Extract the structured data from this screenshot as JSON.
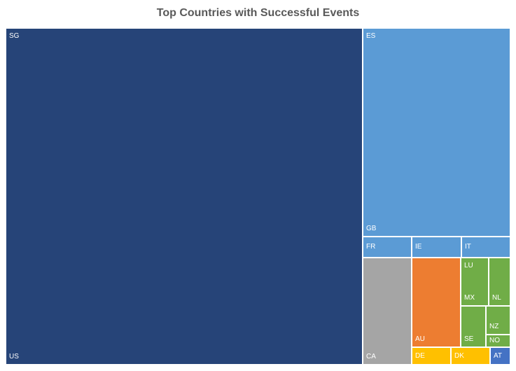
{
  "chart_data": {
    "type": "treemap",
    "title": "Top Countries with Successful Events",
    "colors": {
      "navy": "#264478",
      "lightblue": "#5B9BD5",
      "gray": "#A5A5A5",
      "orange": "#ED7D31",
      "green": "#70AD47",
      "gold": "#FFC000",
      "blue": "#4472C4"
    },
    "tiles": [
      {
        "id": "sg-us",
        "labels": [
          "SG",
          "US"
        ],
        "color": "navy"
      },
      {
        "id": "es-gb",
        "labels": [
          "ES",
          "GB"
        ],
        "color": "lightblue"
      },
      {
        "id": "fr",
        "labels": [
          "FR"
        ],
        "color": "lightblue"
      },
      {
        "id": "ie",
        "labels": [
          "IE"
        ],
        "color": "lightblue"
      },
      {
        "id": "it",
        "labels": [
          "IT"
        ],
        "color": "lightblue"
      },
      {
        "id": "ca",
        "labels": [
          "CA"
        ],
        "color": "gray"
      },
      {
        "id": "au",
        "labels": [
          "AU"
        ],
        "color": "orange"
      },
      {
        "id": "lu-mx",
        "labels": [
          "LU",
          "MX"
        ],
        "color": "green"
      },
      {
        "id": "nl",
        "labels": [
          "NL"
        ],
        "color": "green"
      },
      {
        "id": "se",
        "labels": [
          "SE"
        ],
        "color": "green"
      },
      {
        "id": "nz",
        "labels": [
          "NZ"
        ],
        "color": "green"
      },
      {
        "id": "no",
        "labels": [
          "NO"
        ],
        "color": "green"
      },
      {
        "id": "de",
        "labels": [
          "DE"
        ],
        "color": "gold"
      },
      {
        "id": "dk",
        "labels": [
          "DK"
        ],
        "color": "gold"
      },
      {
        "id": "at",
        "labels": [
          "AT"
        ],
        "color": "blue"
      }
    ]
  }
}
